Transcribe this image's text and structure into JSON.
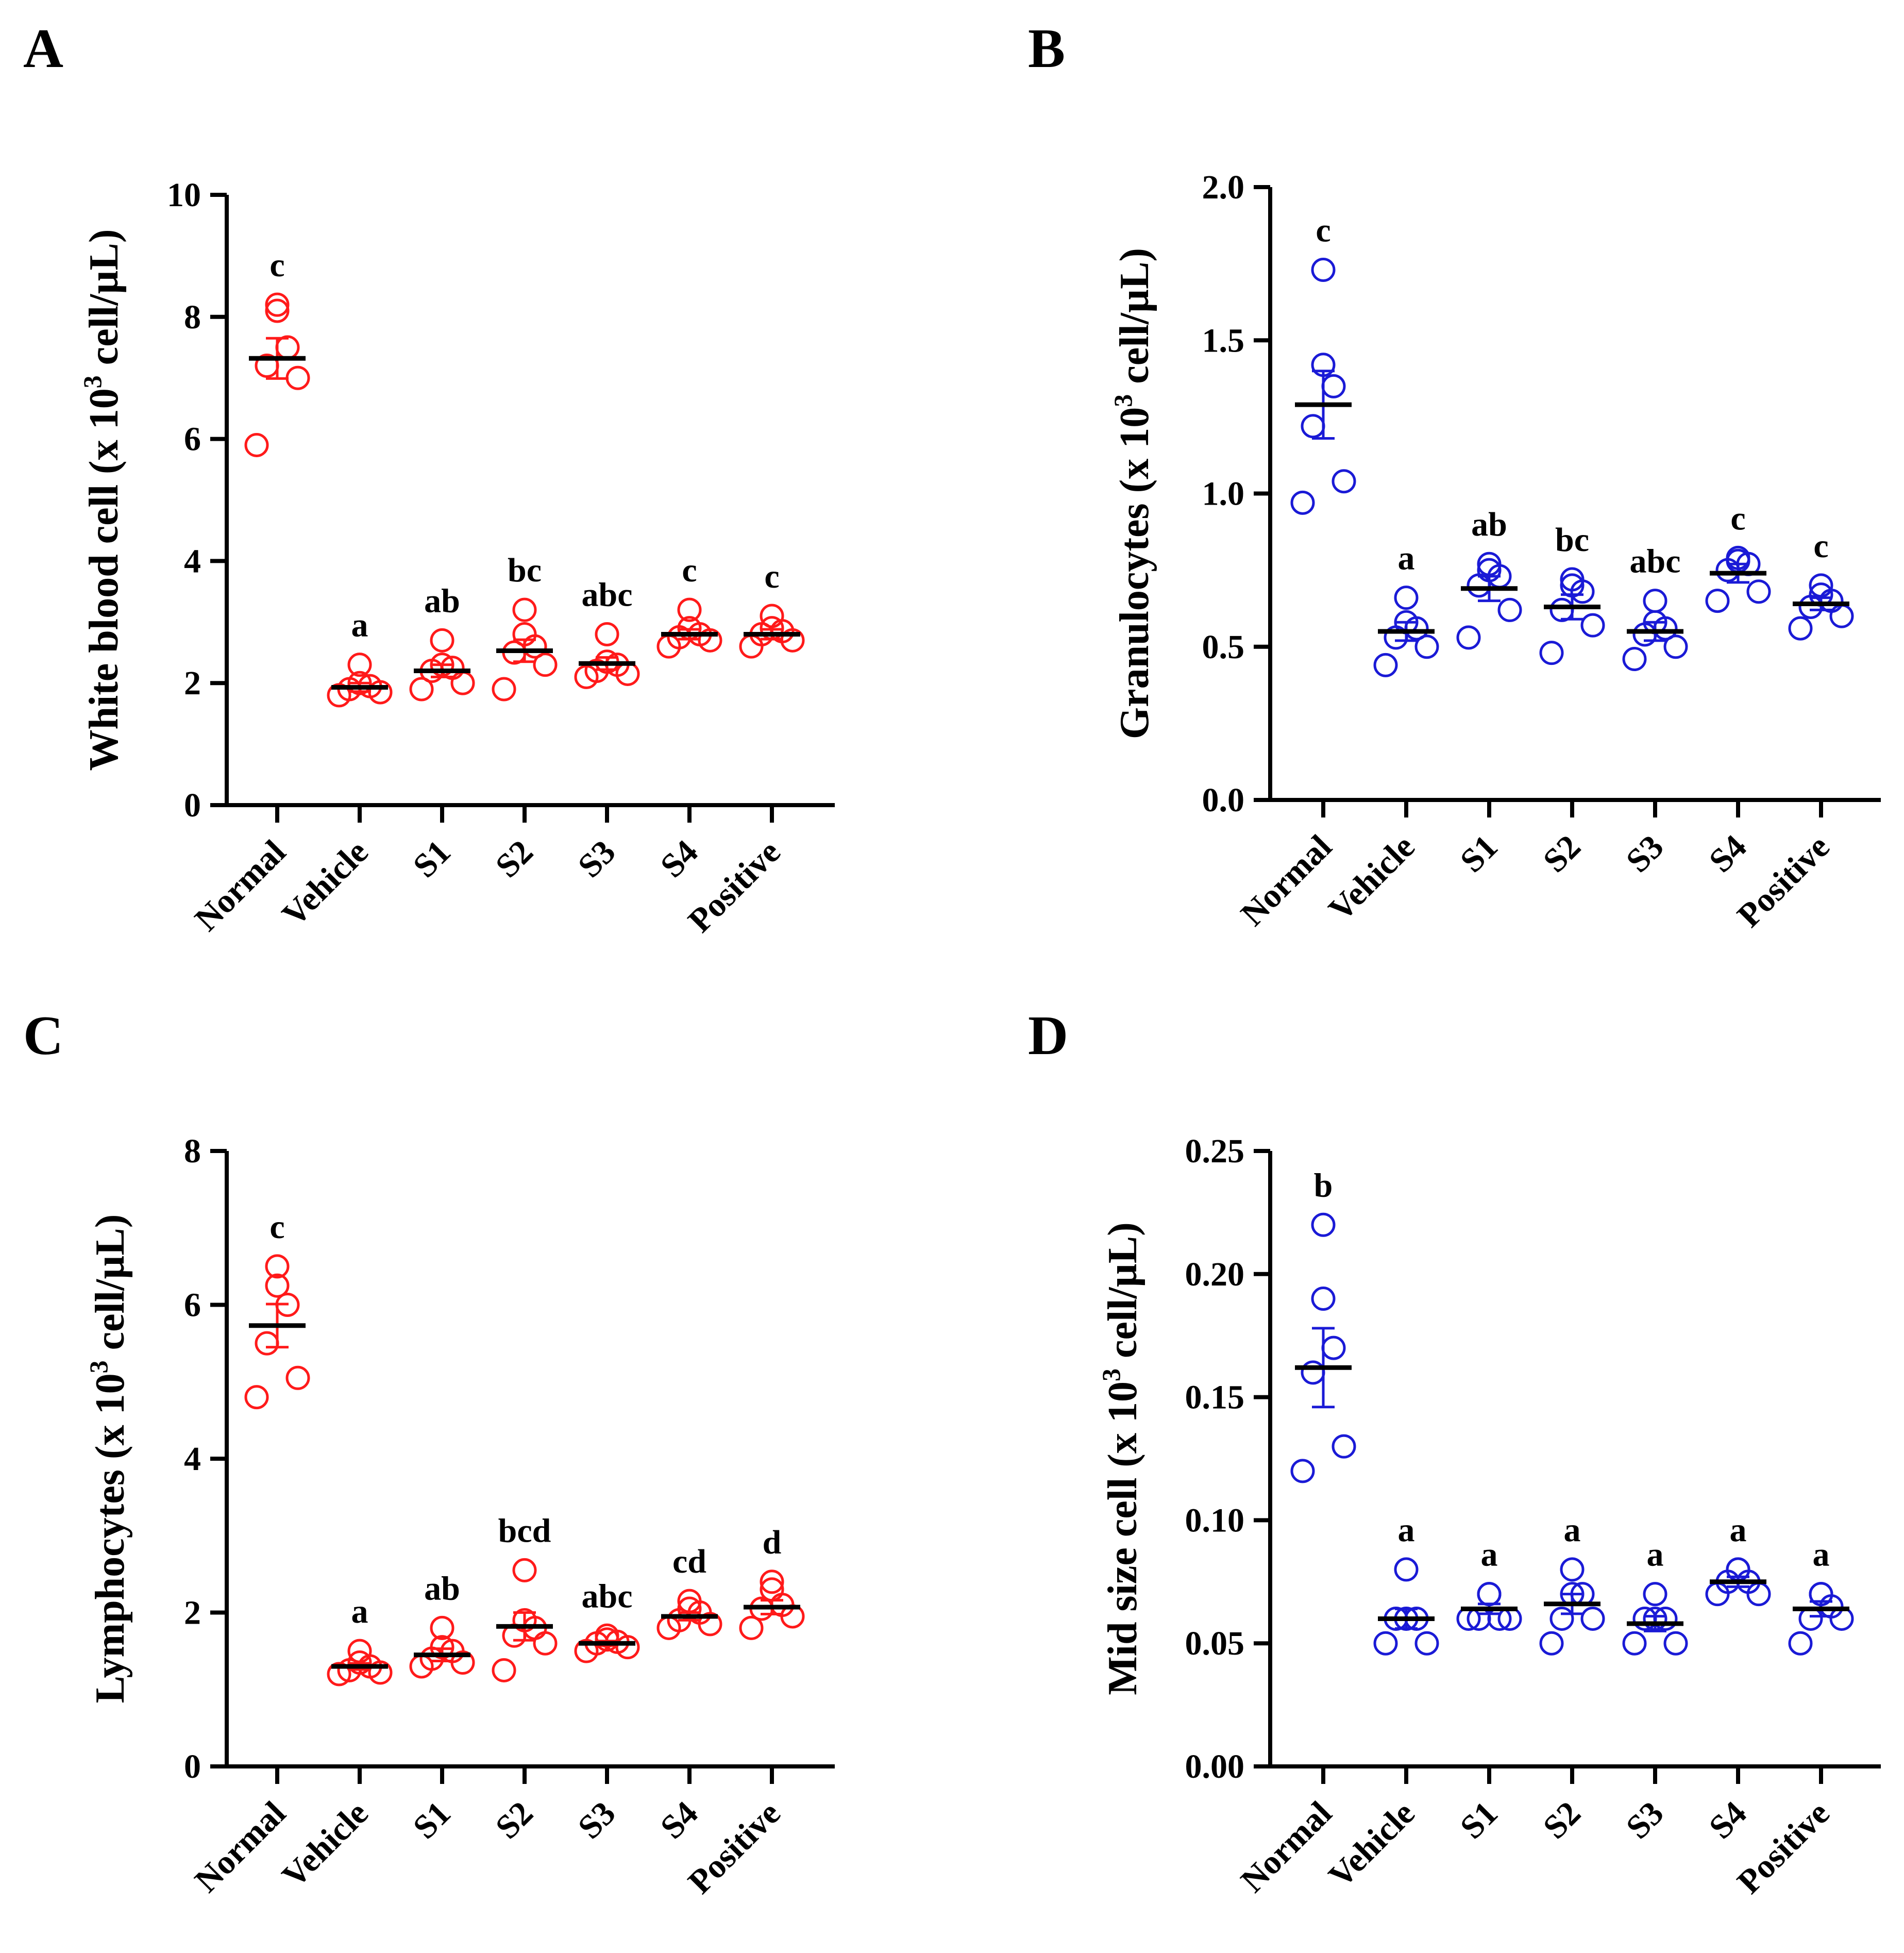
{
  "colors": {
    "red": "#ff1a1a",
    "blue": "#1a1ad6",
    "axis": "#000000",
    "mean_bar": "#000000"
  },
  "chart_data": [
    {
      "panel": "A",
      "type": "scatter",
      "ylabel": {
        "pre": "White blood cell (x 10",
        "sup": "3",
        "post": " cell/µL)"
      },
      "categories": [
        "Normal",
        "Vehicle",
        "S1",
        "S2",
        "S3",
        "S4",
        "Positive"
      ],
      "ylim": [
        0,
        10
      ],
      "yticks": [
        0,
        2,
        4,
        6,
        8,
        10
      ],
      "tick_labels": [
        "0",
        "2",
        "4",
        "6",
        "8",
        "10"
      ],
      "color": "#ff1a1a",
      "points": [
        [
          5.9,
          7.0,
          7.2,
          7.5,
          8.1,
          8.2
        ],
        [
          1.8,
          1.85,
          1.9,
          1.95,
          2.0,
          2.3
        ],
        [
          1.9,
          2.0,
          2.2,
          2.25,
          2.3,
          2.7
        ],
        [
          1.9,
          2.3,
          2.5,
          2.6,
          2.8,
          3.2
        ],
        [
          2.1,
          2.15,
          2.2,
          2.3,
          2.35,
          2.8
        ],
        [
          2.6,
          2.7,
          2.75,
          2.8,
          2.9,
          3.2
        ],
        [
          2.6,
          2.7,
          2.8,
          2.85,
          2.9,
          3.1
        ]
      ],
      "means": [
        7.32,
        1.93,
        2.2,
        2.53,
        2.32,
        2.8,
        2.8
      ],
      "sems": [
        0.33,
        0.07,
        0.1,
        0.18,
        0.1,
        0.08,
        0.08
      ],
      "sig_letters": [
        "c",
        "a",
        "ab",
        "bc",
        "abc",
        "c",
        "c"
      ]
    },
    {
      "panel": "B",
      "type": "scatter",
      "ylabel": {
        "pre": "Granulocytes (x 10",
        "sup": "3",
        "post": " cell/µL)"
      },
      "categories": [
        "Normal",
        "Vehicle",
        "S1",
        "S2",
        "S3",
        "S4",
        "Positive"
      ],
      "ylim": [
        0,
        2.0
      ],
      "yticks": [
        0,
        0.5,
        1.0,
        1.5,
        2.0
      ],
      "tick_labels": [
        "0.0",
        "0.5",
        "1.0",
        "1.5",
        "2.0"
      ],
      "color": "#1a1ad6",
      "points": [
        [
          0.97,
          1.04,
          1.22,
          1.35,
          1.42,
          1.73
        ],
        [
          0.44,
          0.5,
          0.53,
          0.56,
          0.58,
          0.66
        ],
        [
          0.53,
          0.62,
          0.7,
          0.73,
          0.75,
          0.77
        ],
        [
          0.48,
          0.57,
          0.62,
          0.68,
          0.7,
          0.72
        ],
        [
          0.46,
          0.5,
          0.54,
          0.56,
          0.58,
          0.65
        ],
        [
          0.65,
          0.68,
          0.75,
          0.77,
          0.78,
          0.79
        ],
        [
          0.56,
          0.6,
          0.63,
          0.65,
          0.67,
          0.7
        ]
      ],
      "means": [
        1.29,
        0.55,
        0.69,
        0.63,
        0.55,
        0.74,
        0.64
      ],
      "sems": [
        0.11,
        0.03,
        0.04,
        0.04,
        0.03,
        0.03,
        0.02
      ],
      "sig_letters": [
        "c",
        "a",
        "ab",
        "bc",
        "abc",
        "c",
        "c"
      ]
    },
    {
      "panel": "C",
      "type": "scatter",
      "ylabel": {
        "pre": "Lymphocytes (x 10",
        "sup": "3",
        "post": " cell/µL)"
      },
      "categories": [
        "Normal",
        "Vehicle",
        "S1",
        "S2",
        "S3",
        "S4",
        "Positive"
      ],
      "ylim": [
        0,
        8
      ],
      "yticks": [
        0,
        2,
        4,
        6,
        8
      ],
      "tick_labels": [
        "0",
        "2",
        "4",
        "6",
        "8"
      ],
      "color": "#ff1a1a",
      "points": [
        [
          4.8,
          5.05,
          5.5,
          6.0,
          6.25,
          6.5
        ],
        [
          1.2,
          1.22,
          1.25,
          1.3,
          1.35,
          1.5
        ],
        [
          1.3,
          1.35,
          1.4,
          1.5,
          1.55,
          1.8
        ],
        [
          1.25,
          1.6,
          1.7,
          1.8,
          1.9,
          2.55
        ],
        [
          1.5,
          1.55,
          1.6,
          1.62,
          1.65,
          1.7
        ],
        [
          1.8,
          1.85,
          1.9,
          2.0,
          2.05,
          2.15
        ],
        [
          1.8,
          1.95,
          2.05,
          2.1,
          2.3,
          2.4
        ]
      ],
      "means": [
        5.73,
        1.3,
        1.45,
        1.82,
        1.6,
        1.95,
        2.07
      ],
      "sems": [
        0.28,
        0.04,
        0.08,
        0.18,
        0.03,
        0.05,
        0.09
      ],
      "sig_letters": [
        "c",
        "a",
        "ab",
        "bcd",
        "abc",
        "cd",
        "d"
      ]
    },
    {
      "panel": "D",
      "type": "scatter",
      "ylabel": {
        "pre": "Mid size cell (x 10",
        "sup": "3",
        "post": " cell/µL)"
      },
      "categories": [
        "Normal",
        "Vehicle",
        "S1",
        "S2",
        "S3",
        "S4",
        "Positive"
      ],
      "ylim": [
        0,
        0.25
      ],
      "yticks": [
        0,
        0.05,
        0.1,
        0.15,
        0.2,
        0.25
      ],
      "tick_labels": [
        "0.00",
        "0.05",
        "0.10",
        "0.15",
        "0.20",
        "0.25"
      ],
      "color": "#1a1ad6",
      "points": [
        [
          0.12,
          0.13,
          0.16,
          0.17,
          0.19,
          0.22
        ],
        [
          0.05,
          0.05,
          0.06,
          0.06,
          0.06,
          0.08
        ],
        [
          0.06,
          0.06,
          0.06,
          0.06,
          0.07,
          0.07
        ],
        [
          0.05,
          0.06,
          0.06,
          0.07,
          0.07,
          0.08
        ],
        [
          0.05,
          0.05,
          0.06,
          0.06,
          0.06,
          0.07
        ],
        [
          0.07,
          0.07,
          0.075,
          0.075,
          0.08,
          0.08
        ],
        [
          0.05,
          0.06,
          0.06,
          0.065,
          0.07,
          0.07
        ]
      ],
      "means": [
        0.162,
        0.06,
        0.064,
        0.066,
        0.058,
        0.075,
        0.064
      ],
      "sems": [
        0.016,
        0.004,
        0.002,
        0.004,
        0.003,
        0.002,
        0.003
      ],
      "sig_letters": [
        "b",
        "a",
        "a",
        "a",
        "a",
        "a",
        "a"
      ]
    }
  ]
}
